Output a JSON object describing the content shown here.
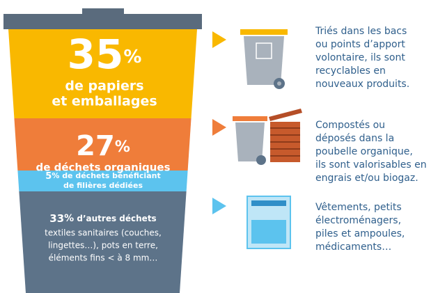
{
  "segments": [
    {
      "percent": 35,
      "unit": "%",
      "lines": [
        "de papiers",
        "et emballages"
      ]
    },
    {
      "percent": 27,
      "unit": "%",
      "lines": [
        "de déchets organiques"
      ]
    },
    {
      "percent": 5,
      "unit": "%",
      "lines": [
        "de déchets bénéficiant",
        "de filières dédiées"
      ]
    },
    {
      "percent": 33,
      "unit": "%",
      "lines": [
        "d’autres déchets"
      ],
      "details": [
        "textiles sanitaires (couches,",
        "lingettes…), pots en terre,",
        "éléments fins < à 8 mm…"
      ]
    }
  ],
  "destinations": [
    {
      "lines": [
        "Triés dans les bacs",
        "ou points d’apport",
        "volontaire, ils sont",
        "recyclables en",
        "nouveaux produits."
      ]
    },
    {
      "lines": [
        "Compostés ou",
        "déposés dans la",
        "poubelle organique,",
        "ils sont valorisables en",
        "engrais et/ou biogaz."
      ]
    },
    {
      "lines": [
        "Vêtements, petits",
        "électroménagers,",
        "piles et ampoules,",
        "médicaments…"
      ]
    }
  ]
}
